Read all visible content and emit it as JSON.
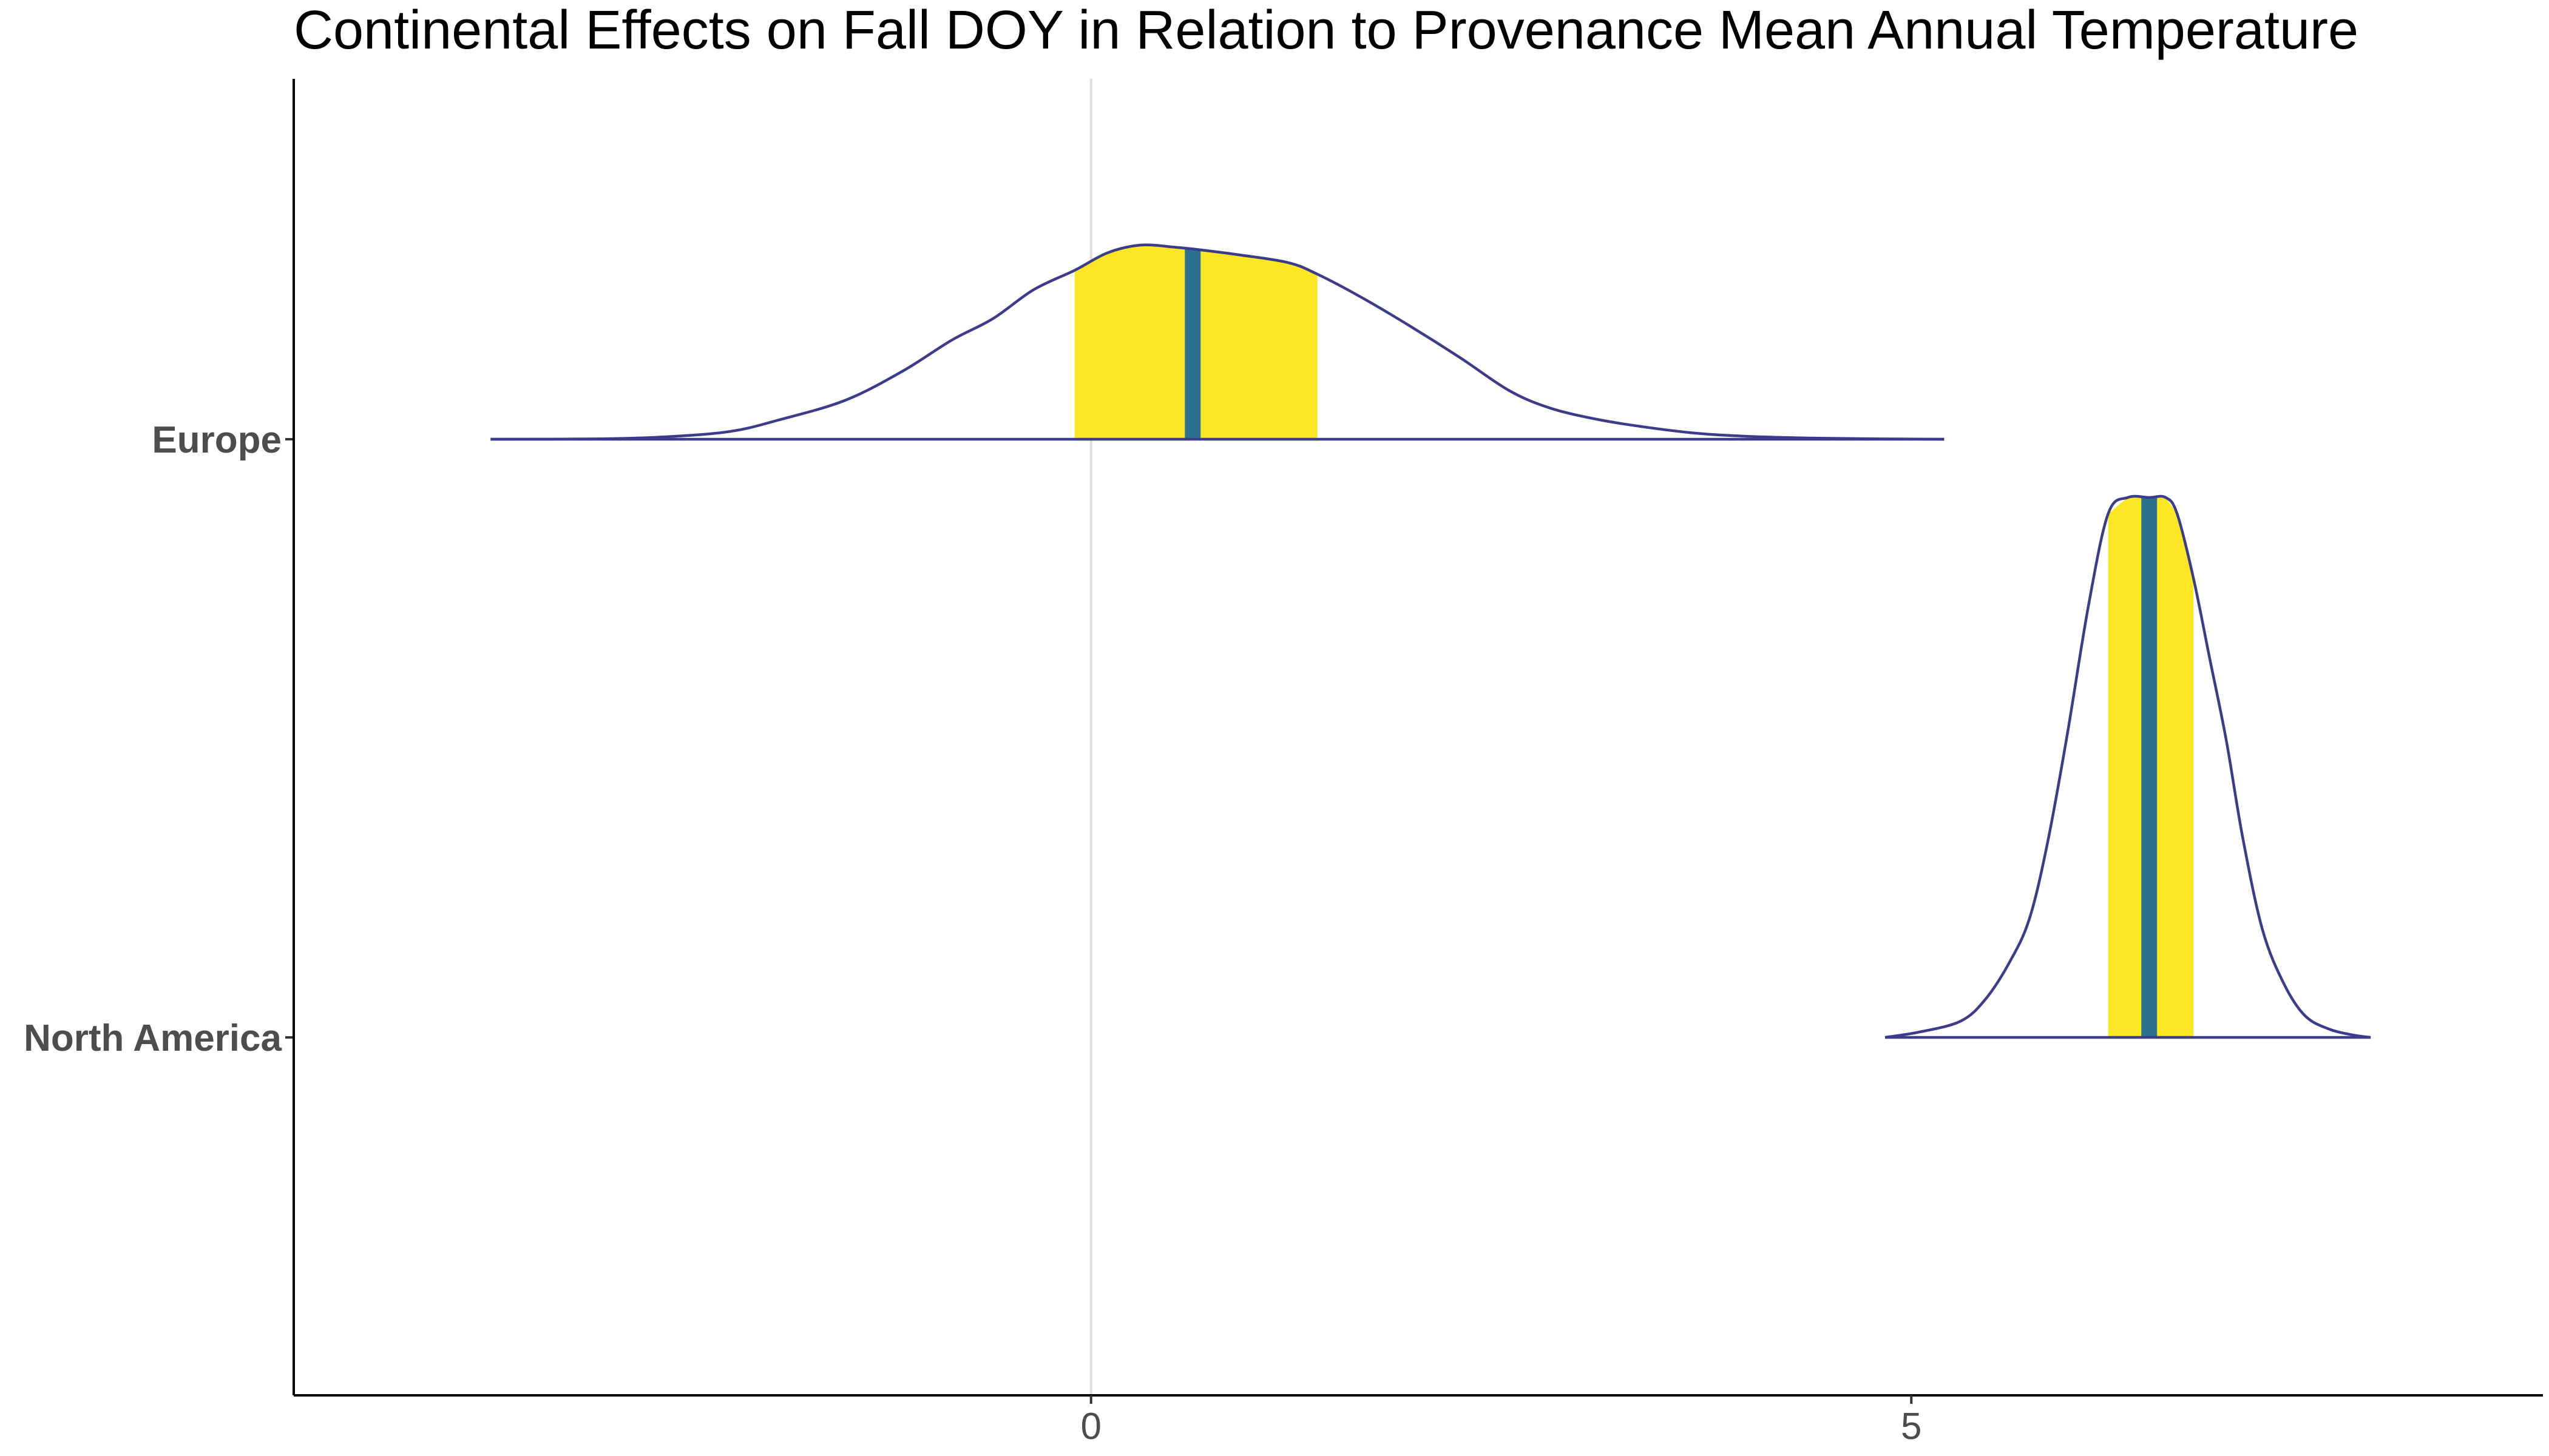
{
  "chart_data": {
    "type": "area",
    "title": "Continental Effects on Fall DOY in Relation to Provenance Mean Annual Temperature",
    "xlabel": "",
    "ylabel": "",
    "xlim": [
      -4.86,
      8.85
    ],
    "x_ticks": [
      0,
      5
    ],
    "x_tick_labels": [
      "0",
      "5"
    ],
    "grid": false,
    "ref_line_x": 0,
    "colors": {
      "outline": "#3b3c8a",
      "interval_fill": "#fde725",
      "median_line": "#2c728e",
      "ref_line": "#dedede"
    },
    "series": [
      {
        "name": "Europe",
        "median": 0.62,
        "interval": [
          -0.1,
          1.38
        ],
        "density": [
          [
            -3.66,
            0
          ],
          [
            -3.0,
            0.002
          ],
          [
            -2.6,
            0.012
          ],
          [
            -2.2,
            0.04
          ],
          [
            -1.9,
            0.1
          ],
          [
            -1.5,
            0.2
          ],
          [
            -1.15,
            0.35
          ],
          [
            -0.85,
            0.51
          ],
          [
            -0.6,
            0.62
          ],
          [
            -0.35,
            0.77
          ],
          [
            -0.1,
            0.87
          ],
          [
            0.1,
            0.96
          ],
          [
            0.3,
            1.0
          ],
          [
            0.5,
            0.99
          ],
          [
            0.62,
            0.98
          ],
          [
            0.9,
            0.95
          ],
          [
            1.2,
            0.91
          ],
          [
            1.38,
            0.85
          ],
          [
            1.65,
            0.73
          ],
          [
            1.95,
            0.58
          ],
          [
            2.25,
            0.42
          ],
          [
            2.55,
            0.25
          ],
          [
            2.8,
            0.16
          ],
          [
            3.1,
            0.1
          ],
          [
            3.4,
            0.06
          ],
          [
            3.7,
            0.03
          ],
          [
            4.0,
            0.015
          ],
          [
            4.4,
            0.006
          ],
          [
            4.8,
            0.002
          ],
          [
            5.2,
            0
          ]
        ]
      },
      {
        "name": "North America",
        "median": 6.45,
        "interval": [
          6.2,
          6.72
        ],
        "density": [
          [
            4.84,
            0
          ],
          [
            5.05,
            0.01
          ],
          [
            5.3,
            0.03
          ],
          [
            5.45,
            0.07
          ],
          [
            5.6,
            0.14
          ],
          [
            5.72,
            0.22
          ],
          [
            5.83,
            0.36
          ],
          [
            5.95,
            0.56
          ],
          [
            6.08,
            0.8
          ],
          [
            6.2,
            0.97
          ],
          [
            6.32,
            1.0
          ],
          [
            6.45,
            1.0
          ],
          [
            6.55,
            1.0
          ],
          [
            6.62,
            0.97
          ],
          [
            6.72,
            0.85
          ],
          [
            6.82,
            0.7
          ],
          [
            6.92,
            0.55
          ],
          [
            7.02,
            0.37
          ],
          [
            7.14,
            0.2
          ],
          [
            7.27,
            0.1
          ],
          [
            7.4,
            0.04
          ],
          [
            7.55,
            0.015
          ],
          [
            7.7,
            0.004
          ],
          [
            7.8,
            0
          ]
        ]
      }
    ]
  }
}
